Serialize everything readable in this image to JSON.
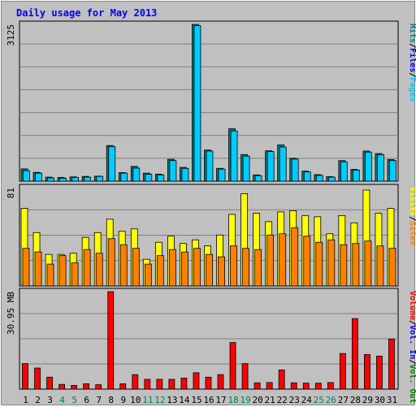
{
  "title": "Daily usage for May 2013",
  "colors": {
    "background": "#c0c0c0",
    "plot_background": "#c0c0c0",
    "gridline": "#808080",
    "hits": "#00ccff",
    "files": "#0066ff",
    "pages": "#00ccff",
    "hits_front": "#00ccff",
    "files_back": "#006666",
    "visits": "#ffff00",
    "sites": "#ff8000",
    "volume": "#ff0000",
    "day_label_weekday": "#000000",
    "day_label_weekend": "#00805a",
    "title": "#0000ff"
  },
  "chart_data": [
    {
      "type": "bar",
      "panel": "top",
      "ytick": "3125",
      "ylim": [
        0,
        3125
      ],
      "grid": true,
      "legend_vertical": [
        "Hits",
        "/",
        "Files",
        "/",
        "Pages"
      ],
      "legend_colors": [
        "#008080",
        "#000000",
        "#0000ff",
        "#000000",
        "#00ccff"
      ],
      "categories": [
        "1",
        "2",
        "3",
        "4",
        "5",
        "6",
        "7",
        "8",
        "9",
        "10",
        "11",
        "12",
        "13",
        "14",
        "15",
        "16",
        "17",
        "18",
        "19",
        "20",
        "21",
        "22",
        "23",
        "24",
        "25",
        "26",
        "27",
        "28",
        "29",
        "30",
        "31"
      ],
      "series": [
        {
          "name": "Hits",
          "values": [
            245,
            175,
            80,
            75,
            85,
            95,
            100,
            710,
            170,
            295,
            160,
            140,
            435,
            275,
            3125,
            620,
            255,
            1045,
            530,
            125,
            605,
            725,
            455,
            200,
            130,
            90,
            410,
            235,
            600,
            550,
            430
          ]
        },
        {
          "name": "Files",
          "values": [
            210,
            160,
            65,
            60,
            75,
            80,
            95,
            690,
            160,
            260,
            140,
            125,
            410,
            255,
            3100,
            600,
            240,
            1000,
            500,
            110,
            590,
            680,
            440,
            185,
            115,
            80,
            385,
            220,
            580,
            530,
            410
          ]
        }
      ]
    },
    {
      "type": "bar",
      "panel": "middle",
      "ytick": "81",
      "ylim": [
        0,
        81
      ],
      "grid": true,
      "legend_vertical": [
        "Visits",
        "/",
        "Sites"
      ],
      "legend_colors": [
        "#ffff00",
        "#000000",
        "#ff8000"
      ],
      "categories": [
        "1",
        "2",
        "3",
        "4",
        "5",
        "6",
        "7",
        "8",
        "9",
        "10",
        "11",
        "12",
        "13",
        "14",
        "15",
        "16",
        "17",
        "18",
        "19",
        "20",
        "21",
        "22",
        "23",
        "24",
        "25",
        "26",
        "27",
        "28",
        "29",
        "30",
        "31"
      ],
      "series": [
        {
          "name": "Visits",
          "values": [
            64,
            44,
            26,
            26,
            27,
            40,
            44,
            55,
            45,
            47,
            22,
            36,
            41,
            35,
            38,
            33,
            42,
            59,
            76,
            60,
            53,
            61,
            62,
            58,
            57,
            43,
            58,
            52,
            79,
            60,
            64
          ]
        },
        {
          "name": "Sites",
          "values": [
            31,
            28,
            18,
            25,
            19,
            30,
            27,
            39,
            34,
            31,
            18,
            25,
            30,
            28,
            31,
            26,
            24,
            33,
            31,
            30,
            42,
            43,
            48,
            41,
            36,
            38,
            34,
            35,
            37,
            33,
            31
          ]
        }
      ]
    },
    {
      "type": "bar",
      "panel": "bottom",
      "ytick": "30.95 MB",
      "ylim": [
        0,
        30.95
      ],
      "grid": true,
      "legend_vertical": [
        "Volume",
        "/",
        "Vol. In",
        "/",
        "Vol. Out"
      ],
      "legend_colors": [
        "#ff0000",
        "#000000",
        "#0000ff",
        "#000000",
        "#008000"
      ],
      "categories": [
        "1",
        "2",
        "3",
        "4",
        "5",
        "6",
        "7",
        "8",
        "9",
        "10",
        "11",
        "12",
        "13",
        "14",
        "15",
        "16",
        "17",
        "18",
        "19",
        "20",
        "21",
        "22",
        "23",
        "24",
        "25",
        "26",
        "27",
        "28",
        "29",
        "30",
        "31"
      ],
      "weekend_days": [
        "4",
        "5",
        "11",
        "12",
        "18",
        "19",
        "25",
        "26"
      ],
      "series": [
        {
          "name": "Volume",
          "values": [
            8.1,
            6.7,
            3.8,
            1.5,
            1.2,
            1.7,
            1.4,
            30.95,
            1.7,
            4.6,
            3.1,
            3.1,
            3.1,
            3.5,
            5.2,
            3.8,
            4.6,
            14.8,
            8.1,
            2.0,
            2.1,
            6.1,
            2.0,
            1.9,
            1.9,
            2.1,
            11.3,
            22.4,
            11.0,
            10.5,
            15.9
          ]
        }
      ]
    }
  ]
}
